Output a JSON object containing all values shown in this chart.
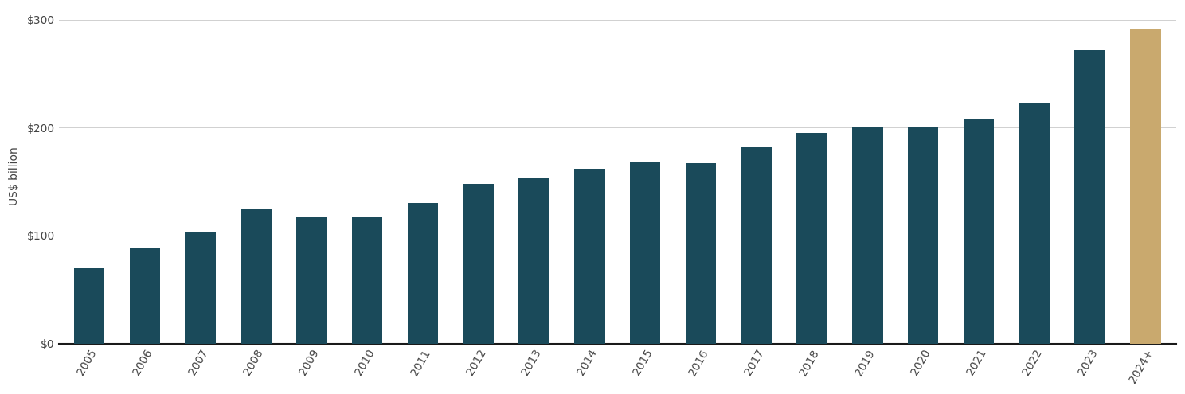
{
  "years": [
    "2005",
    "2006",
    "2007",
    "2008",
    "2009",
    "2010",
    "2011",
    "2012",
    "2013",
    "2014",
    "2015",
    "2016",
    "2017",
    "2018",
    "2019",
    "2020",
    "2021",
    "2022",
    "2023",
    "2024+"
  ],
  "values": [
    70,
    88,
    103,
    125,
    118,
    118,
    130,
    148,
    153,
    162,
    168,
    167,
    182,
    195,
    200,
    200,
    208,
    222,
    272,
    292
  ],
  "bar_colors": [
    "#1a4a5a",
    "#1a4a5a",
    "#1a4a5a",
    "#1a4a5a",
    "#1a4a5a",
    "#1a4a5a",
    "#1a4a5a",
    "#1a4a5a",
    "#1a4a5a",
    "#1a4a5a",
    "#1a4a5a",
    "#1a4a5a",
    "#1a4a5a",
    "#1a4a5a",
    "#1a4a5a",
    "#1a4a5a",
    "#1a4a5a",
    "#1a4a5a",
    "#1a4a5a",
    "#c9a96e"
  ],
  "ylabel": "US$ billion",
  "ylim": [
    0,
    310
  ],
  "yticks": [
    0,
    100,
    200,
    300
  ],
  "ytick_labels": [
    "$0",
    "$100",
    "$200",
    "$300"
  ],
  "background_color": "#ffffff",
  "grid_color": "#d0d0d0",
  "axis_line_color": "#1a1a1a",
  "bar_width": 0.55,
  "tick_fontsize": 10,
  "ylabel_fontsize": 10,
  "label_rotation": 60,
  "xlim_left": -0.55,
  "xlim_right": 19.55
}
